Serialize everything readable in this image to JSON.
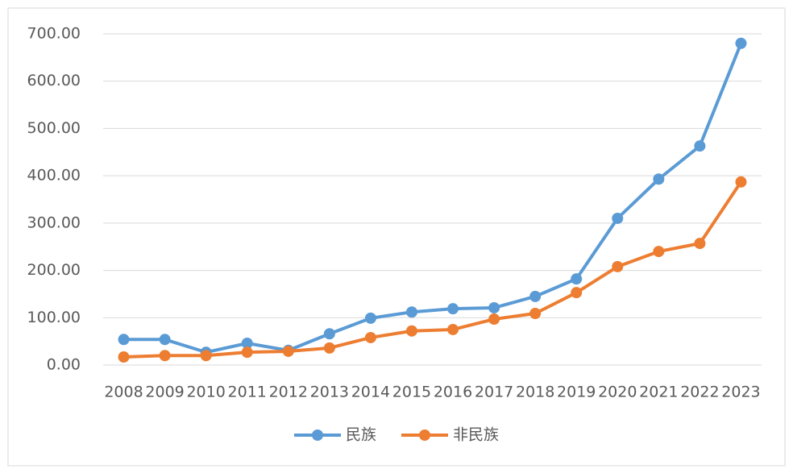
{
  "chart_data": {
    "type": "line",
    "categories": [
      "2008",
      "2009",
      "2010",
      "2011",
      "2012",
      "2013",
      "2014",
      "2015",
      "2016",
      "2017",
      "2018",
      "2019",
      "2020",
      "2021",
      "2022",
      "2023"
    ],
    "series": [
      {
        "name": "民族",
        "color": "#5b9bd5",
        "values": [
          54,
          54,
          27,
          46,
          31,
          66,
          99,
          112,
          119,
          121,
          145,
          182,
          310,
          393,
          463,
          680
        ]
      },
      {
        "name": "非民族",
        "color": "#ed7d31",
        "values": [
          17,
          20,
          20,
          27,
          29,
          36,
          58,
          72,
          75,
          97,
          109,
          153,
          208,
          240,
          257,
          387
        ]
      }
    ],
    "ylim": [
      0,
      700
    ],
    "yticks": [
      {
        "value": 0,
        "label": "0.00"
      },
      {
        "value": 100,
        "label": "100.00"
      },
      {
        "value": 200,
        "label": "200.00"
      },
      {
        "value": 300,
        "label": "300.00"
      },
      {
        "value": 400,
        "label": "400.00"
      },
      {
        "value": 500,
        "label": "500.00"
      },
      {
        "value": 600,
        "label": "600.00"
      },
      {
        "value": 700,
        "label": "700.00"
      }
    ],
    "grid": true,
    "legend": "bottom"
  }
}
